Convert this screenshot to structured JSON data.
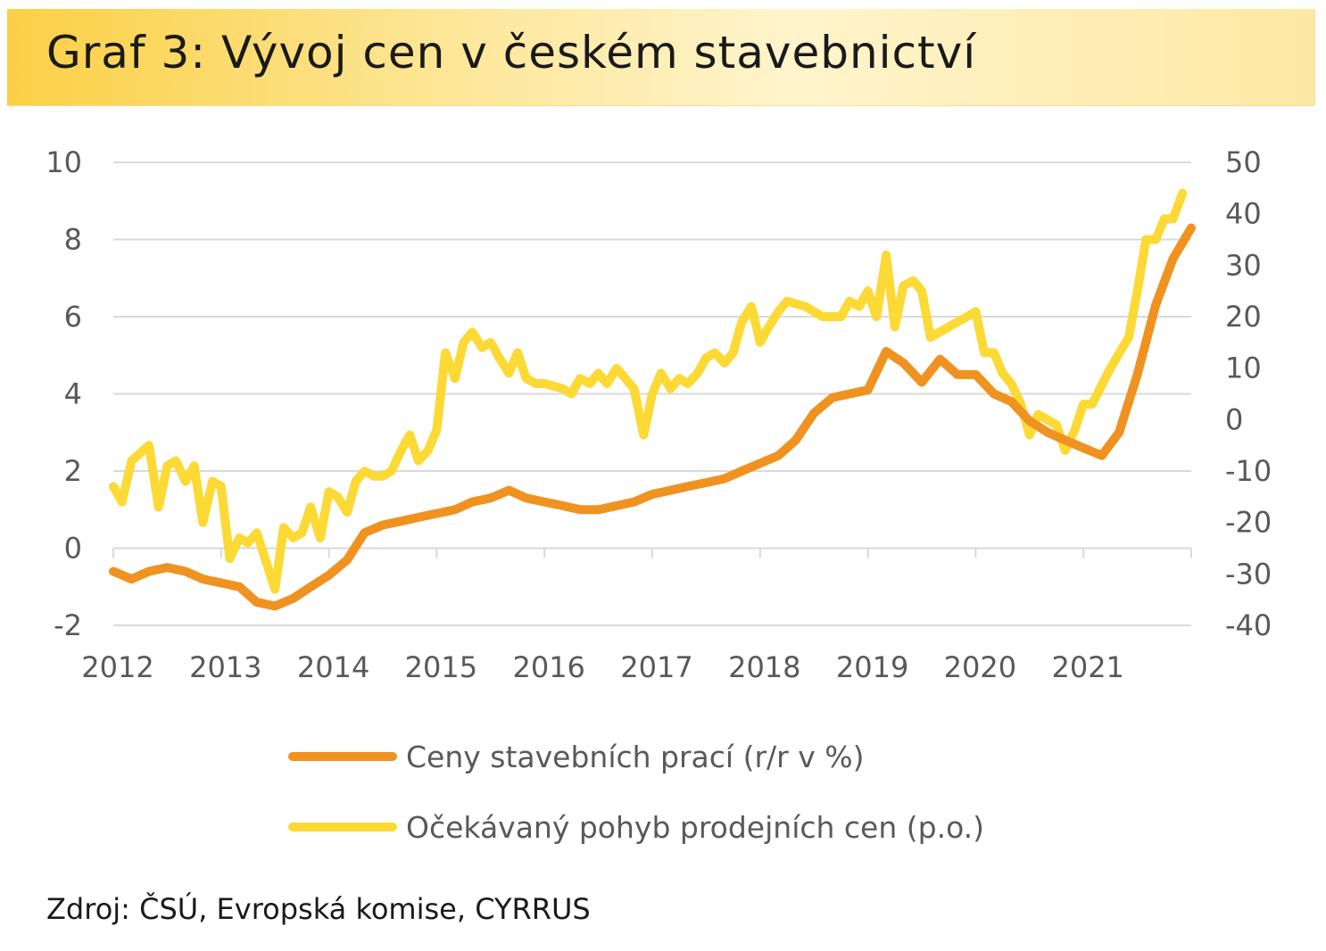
{
  "title": "Graf 3: Vývoj cen v českém stavebnictví",
  "source": "Zdroj: ČSÚ, Evropská komise, CYRRUS",
  "colors": {
    "orange": "#f0921f",
    "yellow": "#fcd935",
    "grid": "#d9d9d9",
    "text": "#595959"
  },
  "chart_data": {
    "type": "line",
    "title": "Graf 3: Vývoj cen v českém stavebnictví",
    "x_ticks": [
      "2012",
      "2013",
      "2014",
      "2015",
      "2016",
      "2017",
      "2018",
      "2019",
      "2020",
      "2021"
    ],
    "y_left": {
      "ylim": [
        -2,
        10
      ],
      "ticks": [
        "10",
        "8",
        "6",
        "4",
        "2",
        "0",
        "-2"
      ]
    },
    "y_right": {
      "ylim": [
        -40,
        50
      ],
      "ticks": [
        "50",
        "40",
        "30",
        "20",
        "10",
        "0",
        "-10",
        "-20",
        "-30",
        "-40"
      ]
    },
    "grid": true,
    "legend_position": "bottom",
    "series": [
      {
        "name": "Ceny stavebních prací (r/r v %)",
        "axis": "left",
        "color": "#f0921f",
        "points": [
          [
            2012.0,
            -0.6
          ],
          [
            2012.17,
            -0.8
          ],
          [
            2012.33,
            -0.6
          ],
          [
            2012.5,
            -0.5
          ],
          [
            2012.67,
            -0.6
          ],
          [
            2012.83,
            -0.8
          ],
          [
            2013.0,
            -0.9
          ],
          [
            2013.17,
            -1.0
          ],
          [
            2013.33,
            -1.4
          ],
          [
            2013.5,
            -1.5
          ],
          [
            2013.67,
            -1.3
          ],
          [
            2013.83,
            -1.0
          ],
          [
            2014.0,
            -0.7
          ],
          [
            2014.17,
            -0.3
          ],
          [
            2014.33,
            0.4
          ],
          [
            2014.5,
            0.6
          ],
          [
            2014.67,
            0.7
          ],
          [
            2014.83,
            0.8
          ],
          [
            2015.0,
            0.9
          ],
          [
            2015.17,
            1.0
          ],
          [
            2015.33,
            1.2
          ],
          [
            2015.5,
            1.3
          ],
          [
            2015.67,
            1.5
          ],
          [
            2015.83,
            1.3
          ],
          [
            2016.0,
            1.2
          ],
          [
            2016.17,
            1.1
          ],
          [
            2016.33,
            1.0
          ],
          [
            2016.5,
            1.0
          ],
          [
            2016.67,
            1.1
          ],
          [
            2016.83,
            1.2
          ],
          [
            2017.0,
            1.4
          ],
          [
            2017.17,
            1.5
          ],
          [
            2017.33,
            1.6
          ],
          [
            2017.5,
            1.7
          ],
          [
            2017.67,
            1.8
          ],
          [
            2017.83,
            2.0
          ],
          [
            2018.0,
            2.2
          ],
          [
            2018.17,
            2.4
          ],
          [
            2018.33,
            2.8
          ],
          [
            2018.5,
            3.5
          ],
          [
            2018.67,
            3.9
          ],
          [
            2018.83,
            4.0
          ],
          [
            2019.0,
            4.1
          ],
          [
            2019.17,
            5.1
          ],
          [
            2019.33,
            4.8
          ],
          [
            2019.5,
            4.3
          ],
          [
            2019.67,
            4.9
          ],
          [
            2019.83,
            4.5
          ],
          [
            2020.0,
            4.5
          ],
          [
            2020.17,
            4.0
          ],
          [
            2020.33,
            3.8
          ],
          [
            2020.5,
            3.3
          ],
          [
            2020.67,
            3.0
          ],
          [
            2020.83,
            2.8
          ],
          [
            2021.0,
            2.6
          ],
          [
            2021.17,
            2.4
          ],
          [
            2021.33,
            3.0
          ],
          [
            2021.5,
            4.5
          ],
          [
            2021.67,
            6.3
          ],
          [
            2021.83,
            7.5
          ],
          [
            2022.0,
            8.3
          ]
        ]
      },
      {
        "name": "Očekávaný pohyb prodejních cen (p.o.)",
        "axis": "right",
        "color": "#fcd935",
        "points": [
          [
            2012.0,
            -13
          ],
          [
            2012.08,
            -16
          ],
          [
            2012.17,
            -8
          ],
          [
            2012.33,
            -5
          ],
          [
            2012.42,
            -17
          ],
          [
            2012.5,
            -9
          ],
          [
            2012.58,
            -8
          ],
          [
            2012.67,
            -12
          ],
          [
            2012.75,
            -9
          ],
          [
            2012.83,
            -20
          ],
          [
            2012.92,
            -12
          ],
          [
            2013.0,
            -13
          ],
          [
            2013.08,
            -27
          ],
          [
            2013.17,
            -23
          ],
          [
            2013.25,
            -24
          ],
          [
            2013.33,
            -22
          ],
          [
            2013.5,
            -33
          ],
          [
            2013.58,
            -21
          ],
          [
            2013.67,
            -23
          ],
          [
            2013.75,
            -22
          ],
          [
            2013.83,
            -17
          ],
          [
            2013.92,
            -23
          ],
          [
            2014.0,
            -14
          ],
          [
            2014.08,
            -15
          ],
          [
            2014.17,
            -18
          ],
          [
            2014.25,
            -12
          ],
          [
            2014.33,
            -10
          ],
          [
            2014.42,
            -11
          ],
          [
            2014.5,
            -11
          ],
          [
            2014.58,
            -10
          ],
          [
            2014.67,
            -6
          ],
          [
            2014.75,
            -3
          ],
          [
            2014.83,
            -8
          ],
          [
            2014.92,
            -6
          ],
          [
            2015.0,
            -2
          ],
          [
            2015.08,
            13
          ],
          [
            2015.17,
            8
          ],
          [
            2015.25,
            15
          ],
          [
            2015.33,
            17
          ],
          [
            2015.42,
            14
          ],
          [
            2015.5,
            15
          ],
          [
            2015.58,
            12
          ],
          [
            2015.67,
            9
          ],
          [
            2015.75,
            13
          ],
          [
            2015.83,
            8
          ],
          [
            2015.92,
            7
          ],
          [
            2016.0,
            7
          ],
          [
            2016.17,
            6
          ],
          [
            2016.25,
            5
          ],
          [
            2016.33,
            8
          ],
          [
            2016.42,
            7
          ],
          [
            2016.5,
            9
          ],
          [
            2016.58,
            7
          ],
          [
            2016.67,
            10
          ],
          [
            2016.75,
            8
          ],
          [
            2016.83,
            6
          ],
          [
            2016.92,
            -3
          ],
          [
            2017.0,
            5
          ],
          [
            2017.08,
            9
          ],
          [
            2017.17,
            6
          ],
          [
            2017.25,
            8
          ],
          [
            2017.33,
            7
          ],
          [
            2017.42,
            9
          ],
          [
            2017.5,
            12
          ],
          [
            2017.58,
            13
          ],
          [
            2017.67,
            11
          ],
          [
            2017.75,
            13
          ],
          [
            2017.83,
            19
          ],
          [
            2017.92,
            22
          ],
          [
            2018.0,
            15
          ],
          [
            2018.08,
            18
          ],
          [
            2018.17,
            21
          ],
          [
            2018.25,
            23
          ],
          [
            2018.42,
            22
          ],
          [
            2018.58,
            20
          ],
          [
            2018.75,
            20
          ],
          [
            2018.83,
            23
          ],
          [
            2018.92,
            22
          ],
          [
            2019.0,
            25
          ],
          [
            2019.08,
            20
          ],
          [
            2019.17,
            32
          ],
          [
            2019.25,
            18
          ],
          [
            2019.33,
            26
          ],
          [
            2019.42,
            27
          ],
          [
            2019.5,
            25
          ],
          [
            2019.58,
            16
          ],
          [
            2019.75,
            18
          ],
          [
            2019.92,
            20
          ],
          [
            2020.0,
            21
          ],
          [
            2020.08,
            13
          ],
          [
            2020.17,
            13
          ],
          [
            2020.25,
            9
          ],
          [
            2020.33,
            7
          ],
          [
            2020.42,
            3
          ],
          [
            2020.5,
            -3
          ],
          [
            2020.58,
            1
          ],
          [
            2020.75,
            -1
          ],
          [
            2020.83,
            -6
          ],
          [
            2020.92,
            -2
          ],
          [
            2021.0,
            3
          ],
          [
            2021.08,
            3
          ],
          [
            2021.25,
            10
          ],
          [
            2021.42,
            16
          ],
          [
            2021.5,
            25
          ],
          [
            2021.58,
            35
          ],
          [
            2021.67,
            35
          ],
          [
            2021.75,
            39
          ],
          [
            2021.83,
            39
          ],
          [
            2021.92,
            44
          ]
        ]
      }
    ]
  }
}
